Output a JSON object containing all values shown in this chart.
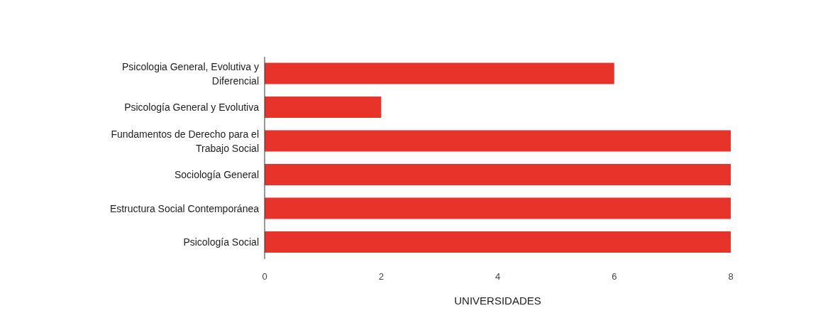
{
  "chart_data": {
    "type": "bar",
    "orientation": "horizontal",
    "xlabel": "UNIVERSIDADES",
    "categories": [
      "Psicologia General, Evolutiva y Diferencial",
      "Psicología General y Evolutiva",
      "Fundamentos de Derecho para el Trabajo Social",
      "Sociología General",
      "Estructura Social Contemporánea",
      "Psicología Social"
    ],
    "values": [
      6,
      2,
      8,
      8,
      8,
      8
    ],
    "color": "#e8332b",
    "xlim": [
      0,
      8
    ],
    "xticks": [
      0,
      2,
      4,
      6,
      8
    ],
    "grid": false,
    "legend": false
  }
}
